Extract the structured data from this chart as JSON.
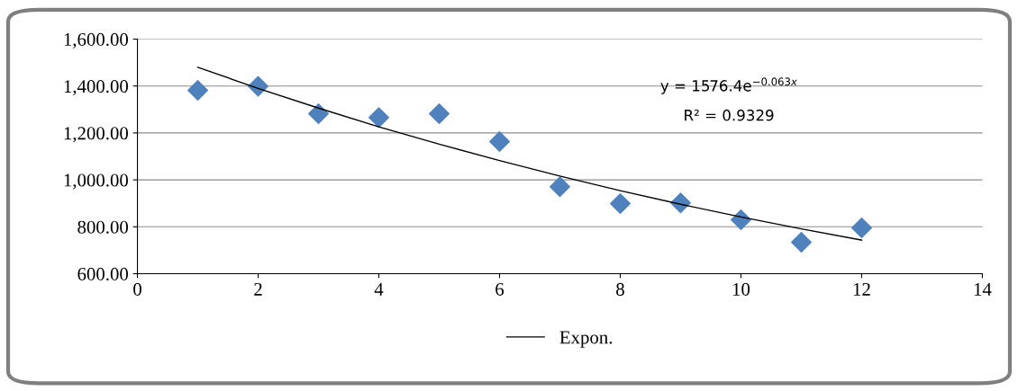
{
  "chart_data": {
    "type": "scatter",
    "x": [
      1,
      2,
      3,
      4,
      5,
      6,
      7,
      8,
      9,
      10,
      11,
      12
    ],
    "series": [
      {
        "color": "#4f81bd",
        "marker": "diamond",
        "values": [
          1382,
          1399,
          1282,
          1266,
          1282,
          1163,
          971,
          899,
          902,
          830,
          734,
          795
        ]
      },
      {
        "type": "line",
        "name": "Expon.",
        "color": "#000000",
        "marker": "none",
        "line_style": "solid",
        "x": [
          1,
          2,
          3,
          4,
          5,
          6,
          7,
          8,
          9,
          10,
          11,
          12
        ],
        "values": [
          1480,
          1390,
          1306,
          1226,
          1152,
          1082,
          1016,
          954,
          896,
          842,
          791,
          743
        ]
      }
    ],
    "xlim": [
      0,
      14
    ],
    "xticks": [
      0,
      2,
      4,
      6,
      8,
      10,
      12,
      14
    ],
    "ylim": [
      600,
      1600
    ],
    "yticks": [
      {
        "value": 600,
        "label": "600.00"
      },
      {
        "value": 800,
        "label": "800.00"
      },
      {
        "value": 1000,
        "label": "1,000.00"
      },
      {
        "value": 1200,
        "label": "1,200.00"
      },
      {
        "value": 1400,
        "label": "1,400.00"
      },
      {
        "value": 1600,
        "label": "1,600.00"
      }
    ],
    "grid": "y",
    "legend": "bottom",
    "annotations": [
      "y = 1576.4e$^{−0.063x}$",
      "R² = 0.9329"
    ]
  }
}
